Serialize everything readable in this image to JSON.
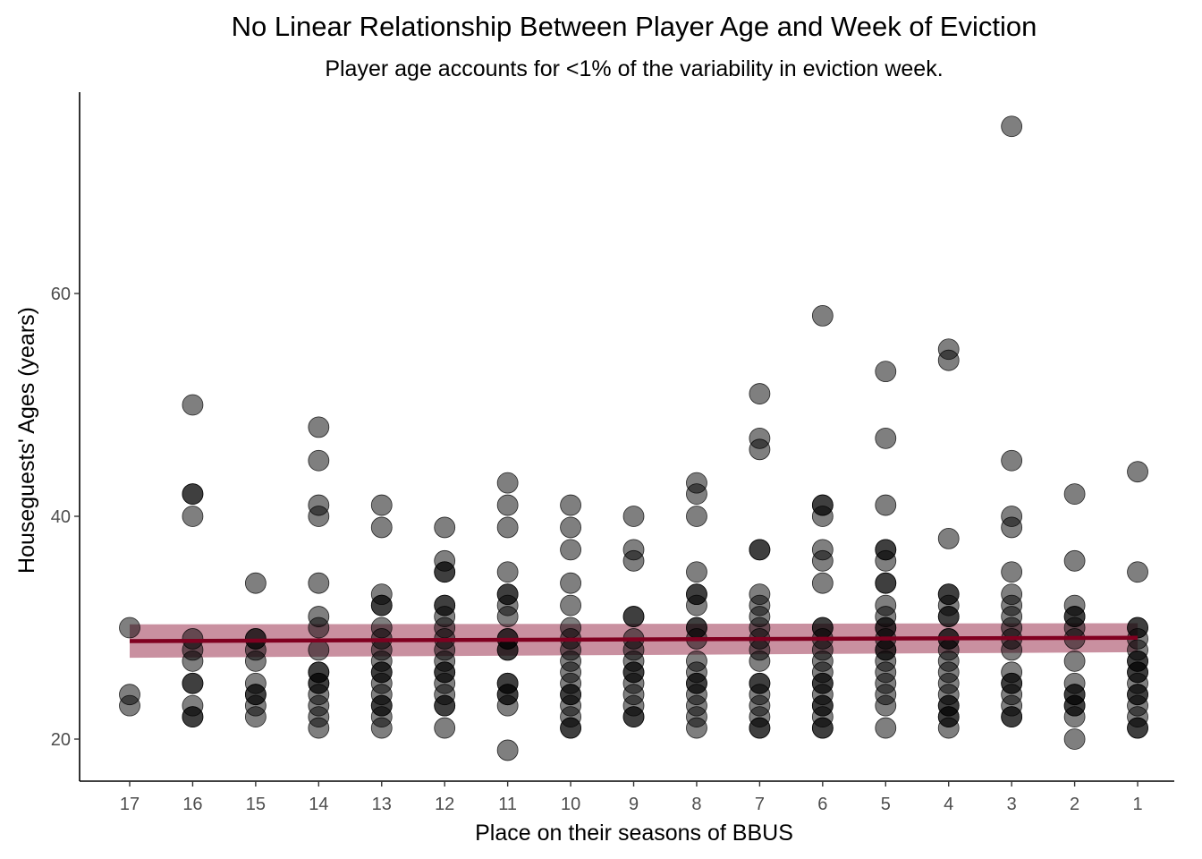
{
  "chart_data": {
    "type": "scatter",
    "title": "No Linear Relationship Between Player Age and Week of Eviction",
    "subtitle": "Player age accounts for <1% of the variability in eviction week.",
    "xlabel": "Place on their seasons of BBUS",
    "ylabel": "Houseguests' Ages (years)",
    "x_categories": [
      "17",
      "16",
      "15",
      "14",
      "13",
      "12",
      "11",
      "10",
      "9",
      "8",
      "7",
      "6",
      "5",
      "4",
      "3",
      "2",
      "1"
    ],
    "y_ticks": [
      20,
      40,
      60
    ],
    "ylim": [
      16.2,
      77.7
    ],
    "grid": false,
    "colors": {
      "points": "#000000",
      "fit_line": "#800020",
      "ribbon": "#b76b80"
    },
    "fit": {
      "start": 28.8,
      "end": 29.1,
      "band_start": [
        27.3,
        30.3
      ],
      "band_end": [
        27.8,
        30.4
      ]
    },
    "points": [
      {
        "place": "17",
        "ages": [
          30,
          24,
          23
        ]
      },
      {
        "place": "16",
        "ages": [
          50,
          42,
          42,
          40,
          29,
          28,
          27,
          25,
          25,
          23,
          22,
          22
        ]
      },
      {
        "place": "15",
        "ages": [
          34,
          29,
          29,
          28,
          27,
          25,
          24,
          24,
          23,
          22
        ]
      },
      {
        "place": "14",
        "ages": [
          48,
          45,
          41,
          40,
          34,
          31,
          30,
          28,
          26,
          26,
          25,
          25,
          24,
          23,
          22,
          21
        ]
      },
      {
        "place": "13",
        "ages": [
          41,
          39,
          33,
          32,
          32,
          30,
          29,
          28,
          27,
          26,
          26,
          25,
          24,
          23,
          23,
          22,
          21
        ]
      },
      {
        "place": "12",
        "ages": [
          39,
          36,
          35,
          35,
          32,
          32,
          31,
          30,
          29,
          28,
          27,
          26,
          26,
          25,
          24,
          23,
          23,
          21
        ]
      },
      {
        "place": "11",
        "ages": [
          43,
          41,
          39,
          35,
          33,
          33,
          32,
          31,
          29,
          29,
          28,
          28,
          25,
          25,
          24,
          24,
          23,
          19
        ]
      },
      {
        "place": "10",
        "ages": [
          41,
          39,
          37,
          34,
          32,
          30,
          29,
          28,
          27,
          26,
          25,
          24,
          24,
          23,
          22,
          21,
          21
        ]
      },
      {
        "place": "9",
        "ages": [
          40,
          37,
          36,
          31,
          31,
          29,
          28,
          27,
          26,
          26,
          25,
          24,
          23,
          22,
          22
        ]
      },
      {
        "place": "8",
        "ages": [
          43,
          42,
          40,
          35,
          33,
          33,
          32,
          30,
          30,
          29,
          27,
          26,
          25,
          25,
          24,
          23,
          22,
          21
        ]
      },
      {
        "place": "7",
        "ages": [
          51,
          47,
          46,
          37,
          37,
          33,
          32,
          31,
          30,
          29,
          28,
          27,
          25,
          25,
          24,
          23,
          22,
          21,
          21
        ]
      },
      {
        "place": "6",
        "ages": [
          58,
          41,
          41,
          40,
          37,
          36,
          34,
          30,
          30,
          29,
          28,
          27,
          26,
          25,
          25,
          24,
          23,
          23,
          22,
          21,
          21
        ]
      },
      {
        "place": "5",
        "ages": [
          53,
          47,
          41,
          37,
          37,
          36,
          34,
          34,
          32,
          31,
          30,
          30,
          29,
          28,
          28,
          27,
          26,
          25,
          24,
          23,
          21
        ]
      },
      {
        "place": "4",
        "ages": [
          55,
          54,
          38,
          33,
          33,
          32,
          31,
          31,
          29,
          29,
          28,
          27,
          26,
          25,
          24,
          23,
          23,
          22,
          22,
          21
        ]
      },
      {
        "place": "3",
        "ages": [
          75,
          45,
          40,
          39,
          35,
          33,
          32,
          31,
          30,
          29,
          28,
          26,
          25,
          25,
          24,
          23,
          22,
          22
        ]
      },
      {
        "place": "2",
        "ages": [
          42,
          36,
          32,
          31,
          31,
          30,
          29,
          27,
          25,
          24,
          24,
          23,
          23,
          22,
          20
        ]
      },
      {
        "place": "1",
        "ages": [
          44,
          35,
          30,
          30,
          29,
          28,
          27,
          27,
          26,
          26,
          25,
          24,
          24,
          23,
          22,
          21,
          21
        ]
      }
    ]
  }
}
